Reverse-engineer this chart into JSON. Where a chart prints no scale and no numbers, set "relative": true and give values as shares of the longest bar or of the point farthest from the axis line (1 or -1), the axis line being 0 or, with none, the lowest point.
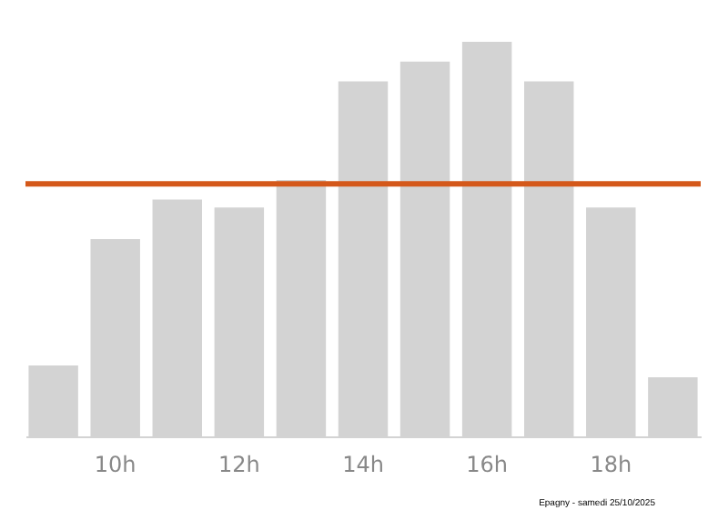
{
  "chart_data": {
    "type": "bar",
    "relative": true,
    "categories": [
      null,
      "10h",
      null,
      "12h",
      null,
      "14h",
      null,
      "16h",
      null,
      "18h",
      null
    ],
    "values": [
      0.18,
      0.5,
      0.6,
      0.58,
      0.65,
      0.9,
      0.95,
      1,
      0.9,
      0.58,
      0.15
    ],
    "color": "#d3d3d3",
    "ref_lines": [
      {
        "axis": "y",
        "value": 0.64,
        "color": "#d4581a"
      }
    ],
    "annotations": [
      "Epagny - samedi 25/10/2025"
    ]
  }
}
